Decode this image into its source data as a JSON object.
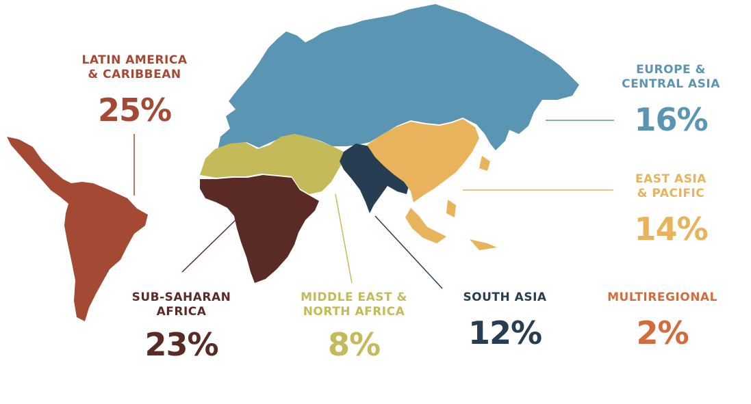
{
  "colors": {
    "latin_america": "#a44a34",
    "europe_central_asia": "#5b95b4",
    "east_asia_pacific": "#e8b35a",
    "sub_saharan_africa": "#5a2b25",
    "middle_east_north_africa": "#c5ba5a",
    "south_asia": "#263d52",
    "multiregional": "#d36c3c",
    "leader_line": "#9aa0a6"
  },
  "regions": {
    "latin_america": {
      "name": "LATIN AMERICA\n& CARIBBEAN",
      "line1": "LATIN AMERICA",
      "line2": "& CARIBBEAN",
      "share": "25%",
      "share_value": 25
    },
    "europe_central_asia": {
      "line1": "EUROPE &",
      "line2": "CENTRAL ASIA",
      "share": "16%",
      "share_value": 16
    },
    "east_asia_pacific": {
      "line1": "EAST ASIA",
      "line2": "& PACIFIC",
      "share": "14%",
      "share_value": 14
    },
    "sub_saharan_africa": {
      "line1": "SUB-SAHARAN",
      "line2": "AFRICA",
      "share": "23%",
      "share_value": 23
    },
    "middle_east_north_africa": {
      "line1": "MIDDLE EAST &",
      "line2": "NORTH AFRICA",
      "share": "8%",
      "share_value": 8
    },
    "south_asia": {
      "line1": "SOUTH ASIA",
      "share": "12%",
      "share_value": 12
    },
    "multiregional": {
      "line1": "MULTIREGIONAL",
      "share": "2%",
      "share_value": 2
    }
  }
}
